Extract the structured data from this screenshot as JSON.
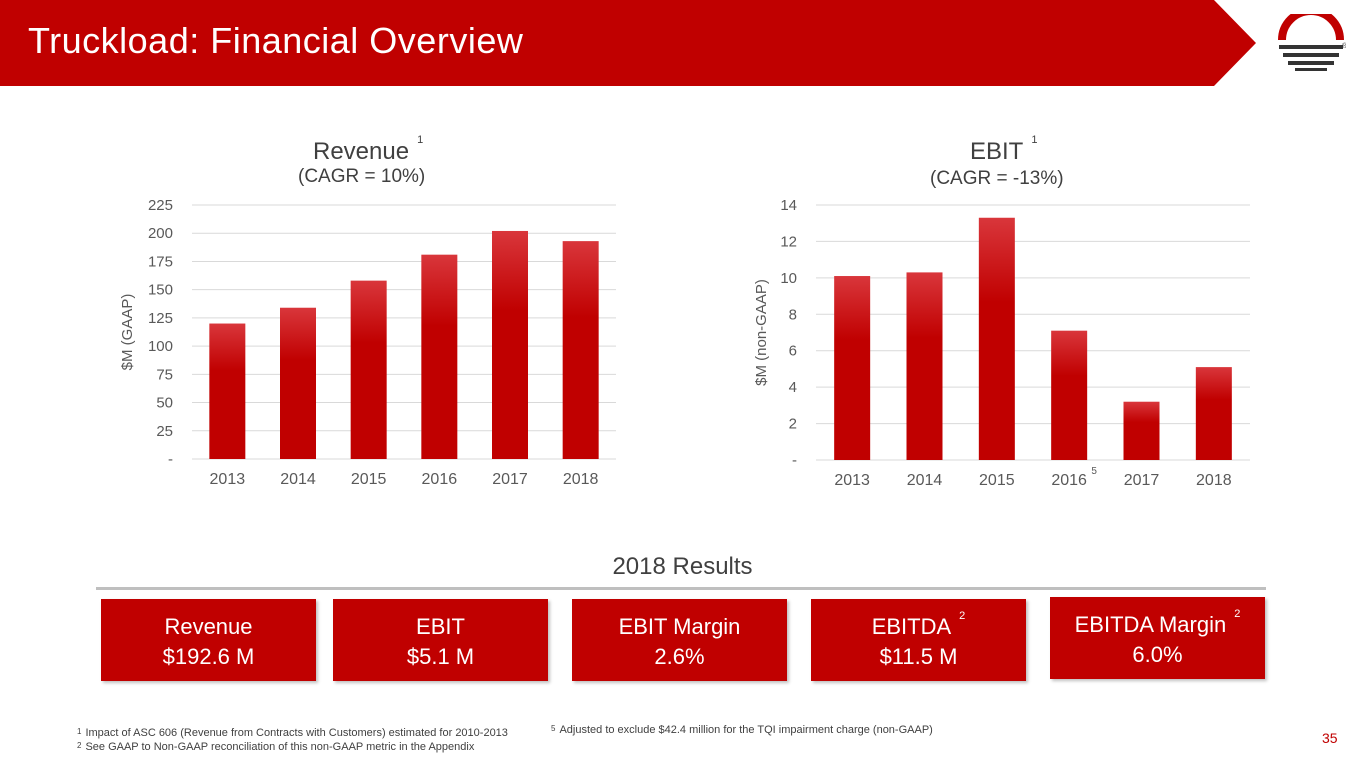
{
  "slide": {
    "title": "Truckload: Financial Overview",
    "page_number": "35",
    "colors": {
      "brand_red": "#c00000",
      "bar_top": "#d9363b",
      "bar_bottom": "#c00000"
    }
  },
  "logo": {
    "icon": "company-logo-icon",
    "mark": "®"
  },
  "chart_data": [
    {
      "type": "bar",
      "title": "Revenue",
      "title_footnote": "1",
      "subtitle": "(CAGR = 10%)",
      "ylabel": "$M (GAAP)",
      "categories": [
        "2013",
        "2014",
        "2015",
        "2016",
        "2017",
        "2018"
      ],
      "values": [
        120,
        134,
        158,
        181,
        202,
        193
      ],
      "ylim": [
        0,
        225
      ],
      "yticks": [
        0,
        25,
        50,
        75,
        100,
        125,
        150,
        175,
        200,
        225
      ],
      "ytick_labels": [
        "-",
        "25",
        "50",
        "75",
        "100",
        "125",
        "150",
        "175",
        "200",
        "225"
      ],
      "category_footnotes": [
        "",
        "",
        "",
        "",
        "",
        ""
      ],
      "grid": true,
      "legend": "none"
    },
    {
      "type": "bar",
      "title": "EBIT",
      "title_footnote": "1",
      "subtitle": "(CAGR = -13%)",
      "ylabel": "$M (non-GAAP)",
      "categories": [
        "2013",
        "2014",
        "2015",
        "2016",
        "2017",
        "2018"
      ],
      "values": [
        10.1,
        10.3,
        13.3,
        7.1,
        3.2,
        5.1
      ],
      "ylim": [
        0,
        14
      ],
      "yticks": [
        0,
        2,
        4,
        6,
        8,
        10,
        12,
        14
      ],
      "ytick_labels": [
        "-",
        "2",
        "4",
        "6",
        "8",
        "10",
        "12",
        "14"
      ],
      "category_footnotes": [
        "",
        "",
        "",
        "5",
        "",
        ""
      ],
      "grid": true,
      "legend": "none"
    }
  ],
  "results": {
    "title": "2018 Results",
    "cards": [
      {
        "label": "Revenue",
        "footnote": "",
        "value": "$192.6 M"
      },
      {
        "label": "EBIT",
        "footnote": "",
        "value": "$5.1 M"
      },
      {
        "label": "EBIT Margin",
        "footnote": "",
        "value": "2.6%"
      },
      {
        "label": "EBITDA",
        "footnote": "2",
        "value": "$11.5 M"
      },
      {
        "label": "EBITDA Margin",
        "footnote": "2",
        "value": "6.0%"
      }
    ]
  },
  "footnotes": [
    {
      "marker": "1",
      "text": "Impact of ASC 606 (Revenue from Contracts with Customers) estimated for 2010-2013"
    },
    {
      "marker": "2",
      "text": "See GAAP to Non-GAAP reconciliation of this non-GAAP metric in the Appendix"
    },
    {
      "marker": "5",
      "text": "Adjusted to exclude $42.4 million for the TQI impairment charge (non-GAAP)"
    }
  ]
}
